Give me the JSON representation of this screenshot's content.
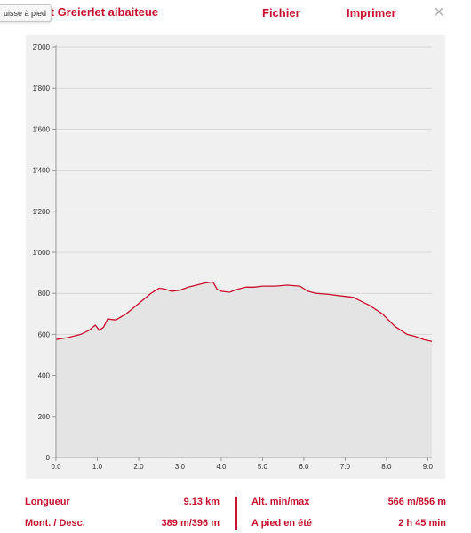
{
  "header": {
    "title": "chterlet Greierlet aibaiteue",
    "tooltip": "uisse à pied",
    "file_label": "Fichier",
    "print_label": "Imprimer",
    "close_label": "×"
  },
  "stats": {
    "length_label": "Longueur",
    "length_value": "9.13 km",
    "ascent_label": "Mont. / Desc.",
    "ascent_value": "389 m/396 m",
    "alt_label": "Alt. min/max",
    "alt_value": "566 m/856 m",
    "time_label": "A pied en été",
    "time_value": "2 h 45 min"
  },
  "colors": {
    "accent": "#c8102e",
    "profile_line": "#c8102e",
    "profile_fill": "#e4e4e4",
    "plot_bg": "#f0f0f0"
  },
  "chart_data": {
    "type": "area",
    "title": "",
    "xlabel": "",
    "ylabel": "",
    "xlim": [
      0,
      9.1
    ],
    "ylim": [
      0,
      2000
    ],
    "grid": true,
    "x_ticks": [
      "0.0",
      "1.0",
      "2.0",
      "3.0",
      "4.0",
      "5.0",
      "6.0",
      "7.0",
      "8.0",
      "9.0"
    ],
    "y_ticks": [
      "0",
      "200",
      "400",
      "600",
      "800",
      "1'000",
      "1'200",
      "1'400",
      "1'600",
      "1'800",
      "2'000"
    ],
    "series": [
      {
        "x": [
          0.0,
          0.3,
          0.6,
          0.8,
          0.95,
          1.05,
          1.15,
          1.25,
          1.45,
          1.7,
          2.0,
          2.3,
          2.5,
          2.65,
          2.8,
          3.0,
          3.2,
          3.4,
          3.6,
          3.8,
          3.9,
          4.0,
          4.2,
          4.4,
          4.6,
          4.8,
          5.0,
          5.3,
          5.6,
          5.9,
          6.1,
          6.3,
          6.6,
          7.0,
          7.2,
          7.4,
          7.6,
          7.9,
          8.2,
          8.5,
          8.7,
          8.9,
          9.1
        ],
        "y": [
          575,
          585,
          600,
          620,
          645,
          620,
          635,
          675,
          670,
          700,
          750,
          800,
          825,
          820,
          810,
          815,
          830,
          840,
          850,
          855,
          820,
          810,
          805,
          820,
          830,
          830,
          835,
          835,
          840,
          835,
          810,
          800,
          795,
          785,
          780,
          760,
          740,
          700,
          640,
          600,
          590,
          575,
          566
        ]
      }
    ]
  }
}
